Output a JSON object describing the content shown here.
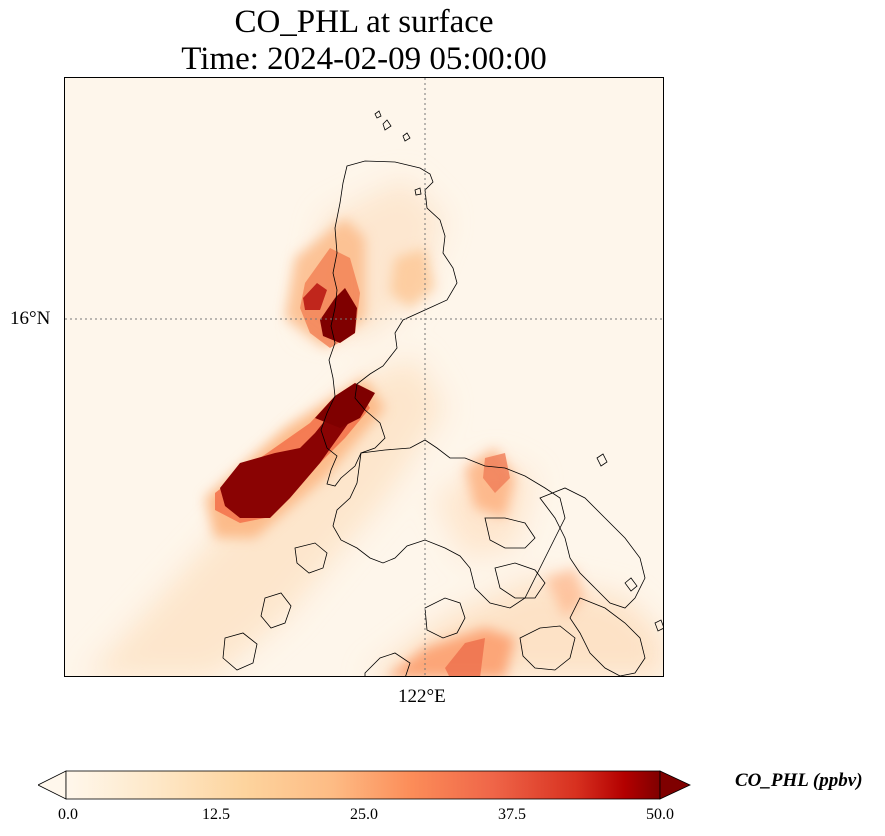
{
  "title": {
    "line1": "CO_PHL at surface",
    "line2": "Time: 2024-02-09 05:00:00"
  },
  "map": {
    "latitude_label": "16°N",
    "longitude_label": "122°E",
    "gridline_style": "dotted",
    "field_colors": [
      "#fff5eb",
      "#fee6ce",
      "#fdd0a2",
      "#fdae6b",
      "#fd8d3c",
      "#f16913",
      "#d94801",
      "#a63603",
      "#7f0000"
    ]
  },
  "colorbar": {
    "label": "CO_PHL (ppbv)",
    "ticks": [
      "0.0",
      "12.5",
      "25.0",
      "37.5",
      "50.0"
    ],
    "min": 0,
    "max": 50,
    "colormap": "OrRd",
    "extend": "both"
  }
}
